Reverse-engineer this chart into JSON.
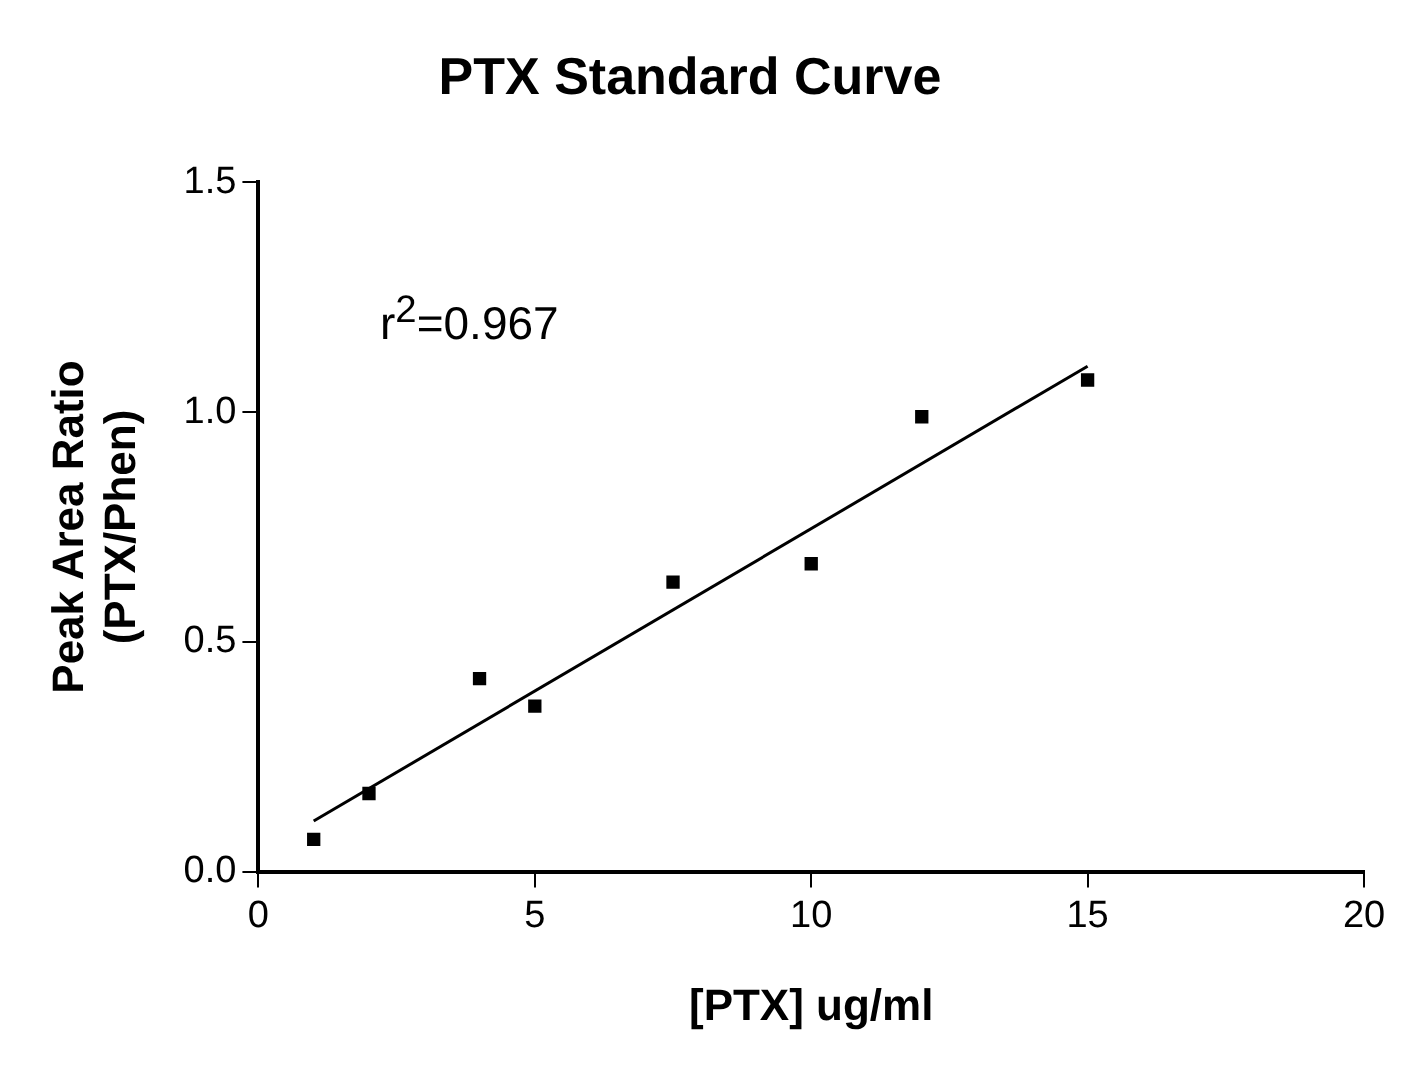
{
  "chart_data": {
    "type": "scatter",
    "title": "PTX Standard Curve",
    "xlabel": "[PTX] ug/ml",
    "ylabel": "Peak Area Ratio\n(PTX/Phen)",
    "annotations": [
      "r$^{2}$=0.967"
    ],
    "series": [
      {
        "color": "#000000",
        "x": [
          1,
          2,
          4,
          5,
          7.5,
          10,
          12,
          15
        ],
        "values": [
          0.07,
          0.17,
          0.42,
          0.36,
          0.63,
          0.67,
          0.99,
          1.07
        ],
        "marker": "square"
      },
      {
        "type": "line",
        "color": "#000000",
        "x": [
          1,
          15
        ],
        "values": [
          0.11,
          1.1
        ],
        "marker": "none",
        "line_style": "solid"
      }
    ],
    "xlim": [
      0,
      20
    ],
    "xticks": [
      0,
      5,
      10,
      15,
      20
    ],
    "ylim": [
      0,
      1.5
    ],
    "yticks": [
      {
        "value": 0,
        "label": "0.0"
      },
      {
        "value": 0.5,
        "label": "0.5"
      },
      {
        "value": 1,
        "label": "1.0"
      },
      {
        "value": 1.5,
        "label": "1.5"
      }
    ],
    "grid": false,
    "legend": false
  }
}
